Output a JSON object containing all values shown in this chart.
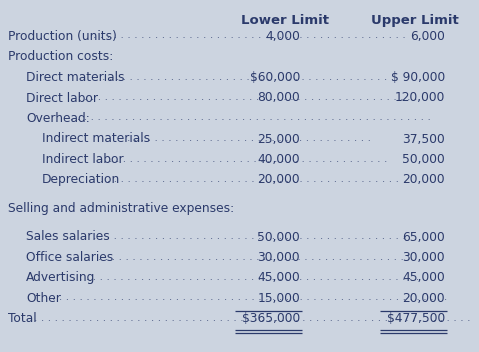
{
  "background_color": "#ccd4e0",
  "text_color": "#2b3a6b",
  "header_fontsize": 9.5,
  "body_fontsize": 8.8,
  "figsize": [
    4.79,
    3.52
  ],
  "dpi": 100,
  "rows": [
    {
      "label": "Production (units)",
      "dots": true,
      "lower": "4,000",
      "upper": "6,000",
      "indent": 0,
      "lower_prefix": "",
      "upper_prefix": "",
      "underline": false,
      "spacer": false
    },
    {
      "label": "Production costs:",
      "dots": false,
      "lower": "",
      "upper": "",
      "indent": 0,
      "lower_prefix": "",
      "upper_prefix": "",
      "underline": false,
      "spacer": false
    },
    {
      "label": "Direct materials",
      "dots": true,
      "lower": "60,000",
      "upper": "90,000",
      "indent": 1,
      "lower_prefix": "$",
      "upper_prefix": "$ ",
      "underline": false,
      "spacer": false
    },
    {
      "label": "Direct labor",
      "dots": true,
      "lower": "80,000",
      "upper": "120,000",
      "indent": 1,
      "lower_prefix": "",
      "upper_prefix": "",
      "underline": false,
      "spacer": false
    },
    {
      "label": "Overhead:",
      "dots": true,
      "lower": "",
      "upper": "",
      "indent": 1,
      "lower_prefix": "",
      "upper_prefix": "",
      "underline": false,
      "spacer": false
    },
    {
      "label": "Indirect materials",
      "dots": true,
      "lower": "25,000",
      "upper": "37,500",
      "indent": 2,
      "lower_prefix": "",
      "upper_prefix": "",
      "underline": false,
      "spacer": false
    },
    {
      "label": "Indirect labor",
      "dots": true,
      "lower": "40,000",
      "upper": "50,000",
      "indent": 2,
      "lower_prefix": "",
      "upper_prefix": "",
      "underline": false,
      "spacer": false
    },
    {
      "label": "Depreciation",
      "dots": true,
      "lower": "20,000",
      "upper": "20,000",
      "indent": 2,
      "lower_prefix": "",
      "upper_prefix": "",
      "underline": false,
      "spacer": false
    },
    {
      "label": "",
      "dots": false,
      "lower": "",
      "upper": "",
      "indent": 0,
      "lower_prefix": "",
      "upper_prefix": "",
      "underline": false,
      "spacer": true
    },
    {
      "label": "Selling and administrative expenses:",
      "dots": false,
      "lower": "",
      "upper": "",
      "indent": 0,
      "lower_prefix": "",
      "upper_prefix": "",
      "underline": false,
      "spacer": false
    },
    {
      "label": "",
      "dots": false,
      "lower": "",
      "upper": "",
      "indent": 0,
      "lower_prefix": "",
      "upper_prefix": "",
      "underline": false,
      "spacer": true
    },
    {
      "label": "Sales salaries",
      "dots": true,
      "lower": "50,000",
      "upper": "65,000",
      "indent": 1,
      "lower_prefix": "",
      "upper_prefix": "",
      "underline": false,
      "spacer": false
    },
    {
      "label": "Office salaries",
      "dots": true,
      "lower": "30,000",
      "upper": "30,000",
      "indent": 1,
      "lower_prefix": "",
      "upper_prefix": "",
      "underline": false,
      "spacer": false
    },
    {
      "label": "Advertising",
      "dots": true,
      "lower": "45,000",
      "upper": "45,000",
      "indent": 1,
      "lower_prefix": "",
      "upper_prefix": "",
      "underline": false,
      "spacer": false
    },
    {
      "label": "Other",
      "dots": true,
      "lower": "15,000",
      "upper": "20,000",
      "indent": 1,
      "lower_prefix": "",
      "upper_prefix": "",
      "underline": true,
      "spacer": false
    },
    {
      "label": "Total",
      "dots": true,
      "lower": "365,000",
      "upper": "477,500",
      "indent": 0,
      "lower_prefix": "$",
      "upper_prefix": "$",
      "underline": false,
      "spacer": false,
      "double_underline": true
    }
  ]
}
